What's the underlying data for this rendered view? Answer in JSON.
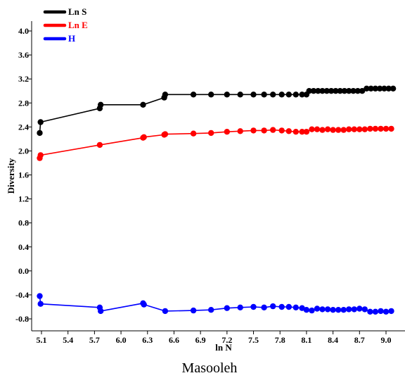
{
  "chart_data": {
    "type": "line",
    "caption": "Masooleh",
    "xlabel": "ln N",
    "ylabel": "Diversity",
    "xlim": [
      5.04,
      9.1
    ],
    "ylim": [
      -0.95,
      4.05
    ],
    "xticks": [
      "5.1",
      "5.4",
      "5.7",
      "6.0",
      "6.3",
      "6.6",
      "6.9",
      "7.2",
      "7.5",
      "7.8",
      "8.1",
      "8.4",
      "8.7",
      "9.0"
    ],
    "yticks": [
      "4.0",
      "3.6",
      "3.2",
      "2.8",
      "2.4",
      "2.0",
      "1.6",
      "1.2",
      "0.8",
      "0.4",
      "0.0",
      "-0.4",
      "-0.8"
    ],
    "grid": false,
    "legend_position": "top-left",
    "series": [
      {
        "name": "Ln S",
        "color": "#000000",
        "points": [
          [
            5.08,
            2.3
          ],
          [
            5.09,
            2.48
          ],
          [
            5.76,
            2.71
          ],
          [
            5.77,
            2.77
          ],
          [
            6.25,
            2.77
          ],
          [
            6.49,
            2.89
          ],
          [
            6.5,
            2.94
          ],
          [
            6.82,
            2.94
          ],
          [
            7.02,
            2.94
          ],
          [
            7.2,
            2.94
          ],
          [
            7.35,
            2.94
          ],
          [
            7.5,
            2.94
          ],
          [
            7.62,
            2.94
          ],
          [
            7.72,
            2.94
          ],
          [
            7.82,
            2.94
          ],
          [
            7.9,
            2.94
          ],
          [
            7.98,
            2.94
          ],
          [
            8.05,
            2.94
          ],
          [
            8.1,
            2.94
          ],
          [
            8.13,
            3.0
          ],
          [
            8.18,
            3.0
          ],
          [
            8.23,
            3.0
          ],
          [
            8.28,
            3.0
          ],
          [
            8.33,
            3.0
          ],
          [
            8.38,
            3.0
          ],
          [
            8.43,
            3.0
          ],
          [
            8.48,
            3.0
          ],
          [
            8.53,
            3.0
          ],
          [
            8.58,
            3.0
          ],
          [
            8.63,
            3.0
          ],
          [
            8.68,
            3.0
          ],
          [
            8.73,
            3.0
          ],
          [
            8.78,
            3.04
          ],
          [
            8.83,
            3.04
          ],
          [
            8.88,
            3.04
          ],
          [
            8.93,
            3.04
          ],
          [
            8.98,
            3.04
          ],
          [
            9.03,
            3.04
          ],
          [
            9.08,
            3.04
          ]
        ]
      },
      {
        "name": "Ln E",
        "color": "#ff0000",
        "points": [
          [
            5.08,
            1.88
          ],
          [
            5.09,
            1.93
          ],
          [
            5.76,
            2.1
          ],
          [
            6.25,
            2.22
          ],
          [
            6.26,
            2.23
          ],
          [
            6.49,
            2.27
          ],
          [
            6.5,
            2.28
          ],
          [
            6.82,
            2.29
          ],
          [
            7.02,
            2.3
          ],
          [
            7.2,
            2.32
          ],
          [
            7.35,
            2.33
          ],
          [
            7.5,
            2.34
          ],
          [
            7.62,
            2.34
          ],
          [
            7.72,
            2.35
          ],
          [
            7.82,
            2.34
          ],
          [
            7.9,
            2.33
          ],
          [
            7.98,
            2.32
          ],
          [
            8.05,
            2.32
          ],
          [
            8.1,
            2.32
          ],
          [
            8.16,
            2.36
          ],
          [
            8.22,
            2.36
          ],
          [
            8.28,
            2.35
          ],
          [
            8.34,
            2.36
          ],
          [
            8.4,
            2.35
          ],
          [
            8.46,
            2.35
          ],
          [
            8.52,
            2.35
          ],
          [
            8.58,
            2.36
          ],
          [
            8.64,
            2.36
          ],
          [
            8.7,
            2.36
          ],
          [
            8.76,
            2.36
          ],
          [
            8.82,
            2.37
          ],
          [
            8.88,
            2.37
          ],
          [
            8.94,
            2.37
          ],
          [
            9.0,
            2.37
          ],
          [
            9.06,
            2.37
          ]
        ]
      },
      {
        "name": "H",
        "color": "#0000ff",
        "points": [
          [
            5.08,
            -0.42
          ],
          [
            5.09,
            -0.55
          ],
          [
            5.76,
            -0.61
          ],
          [
            5.77,
            -0.67
          ],
          [
            6.25,
            -0.54
          ],
          [
            6.26,
            -0.56
          ],
          [
            6.5,
            -0.67
          ],
          [
            6.82,
            -0.66
          ],
          [
            7.02,
            -0.65
          ],
          [
            7.2,
            -0.62
          ],
          [
            7.35,
            -0.61
          ],
          [
            7.5,
            -0.6
          ],
          [
            7.62,
            -0.61
          ],
          [
            7.72,
            -0.59
          ],
          [
            7.82,
            -0.6
          ],
          [
            7.9,
            -0.6
          ],
          [
            7.98,
            -0.61
          ],
          [
            8.05,
            -0.62
          ],
          [
            8.1,
            -0.65
          ],
          [
            8.16,
            -0.66
          ],
          [
            8.22,
            -0.63
          ],
          [
            8.28,
            -0.64
          ],
          [
            8.34,
            -0.64
          ],
          [
            8.4,
            -0.65
          ],
          [
            8.46,
            -0.65
          ],
          [
            8.52,
            -0.65
          ],
          [
            8.58,
            -0.64
          ],
          [
            8.64,
            -0.64
          ],
          [
            8.7,
            -0.63
          ],
          [
            8.76,
            -0.64
          ],
          [
            8.82,
            -0.68
          ],
          [
            8.88,
            -0.68
          ],
          [
            8.94,
            -0.67
          ],
          [
            9.0,
            -0.68
          ],
          [
            9.06,
            -0.67
          ]
        ]
      }
    ]
  }
}
